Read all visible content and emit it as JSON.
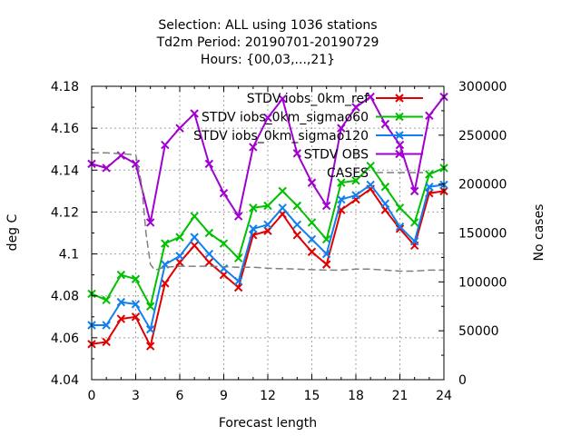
{
  "chart_data": {
    "type": "line",
    "title_lines": [
      "Selection: ALL using  1036 stations",
      "Td2m   Period: 20190701-20190729",
      "Hours: {00,03,...,21}"
    ],
    "xlabel": "Forecast length",
    "ylabel": "deg C",
    "y2label": "No cases",
    "xlim": [
      0,
      24
    ],
    "ylim": [
      4.04,
      4.18
    ],
    "y2lim": [
      0,
      300000
    ],
    "x_ticks": [
      0,
      3,
      6,
      9,
      12,
      15,
      18,
      21,
      24
    ],
    "y_ticks": [
      "4.04",
      "4.06",
      "4.08",
      "4.1",
      "4.12",
      "4.14",
      "4.16",
      "4.18"
    ],
    "y2_ticks": [
      "0",
      "50000",
      "100000",
      "150000",
      "200000",
      "250000",
      "300000"
    ],
    "grid": true,
    "legend_position": "top-right",
    "x": [
      0,
      1,
      2,
      3,
      4,
      5,
      6,
      7,
      8,
      9,
      10,
      11,
      12,
      13,
      14,
      15,
      16,
      17,
      18,
      19,
      20,
      21,
      22,
      23,
      24
    ],
    "series": [
      {
        "name": "STDV iobs_0km_ref",
        "color": "#e00000",
        "axis": "y",
        "values": [
          4.057,
          4.058,
          4.069,
          4.07,
          4.056,
          4.086,
          4.096,
          4.104,
          4.096,
          4.09,
          4.084,
          4.109,
          4.111,
          4.119,
          4.109,
          4.101,
          4.095,
          4.121,
          4.126,
          4.131,
          4.121,
          4.112,
          4.104,
          4.129,
          4.13
        ]
      },
      {
        "name": "STDV iobs_0km_sigmao60",
        "color": "#00c000",
        "axis": "y",
        "values": [
          4.081,
          4.078,
          4.09,
          4.088,
          4.075,
          4.105,
          4.108,
          4.118,
          4.11,
          4.105,
          4.098,
          4.122,
          4.123,
          4.13,
          4.123,
          4.115,
          4.107,
          4.134,
          4.135,
          4.142,
          4.132,
          4.122,
          4.115,
          4.138,
          4.141
        ]
      },
      {
        "name": "STDV iobs_0km_sigmao120",
        "color": "#1080f0",
        "axis": "y",
        "values": [
          4.066,
          4.066,
          4.077,
          4.076,
          4.064,
          4.095,
          4.099,
          4.108,
          4.1,
          4.093,
          4.087,
          4.112,
          4.114,
          4.122,
          4.114,
          4.107,
          4.1,
          4.126,
          4.128,
          4.133,
          4.124,
          4.113,
          4.106,
          4.132,
          4.133
        ]
      },
      {
        "name": "STDV OBS",
        "color": "#a000d0",
        "axis": "y",
        "values": [
          4.143,
          4.141,
          4.147,
          4.143,
          4.115,
          4.152,
          4.16,
          4.167,
          4.143,
          4.129,
          4.118,
          4.151,
          4.165,
          4.174,
          4.148,
          4.134,
          4.123,
          4.16,
          4.17,
          4.175,
          4.162,
          4.152,
          4.13,
          4.166,
          4.175
        ]
      },
      {
        "name": "CASES",
        "color": "#808080",
        "axis": "y2",
        "dashed": true,
        "x": [
          0,
          1,
          2,
          3,
          3.4,
          3.7,
          4,
          4.3,
          5,
          6,
          8,
          10,
          11,
          12,
          14,
          16,
          17,
          18,
          19,
          20,
          21,
          22,
          23,
          24
        ],
        "values": [
          232000,
          232000,
          231000,
          230000,
          200000,
          150000,
          118000,
          112000,
          115000,
          116000,
          116000,
          115000,
          115000,
          114000,
          113000,
          112000,
          112000,
          113000,
          113000,
          112000,
          111000,
          111000,
          112000,
          112000
        ]
      }
    ]
  }
}
